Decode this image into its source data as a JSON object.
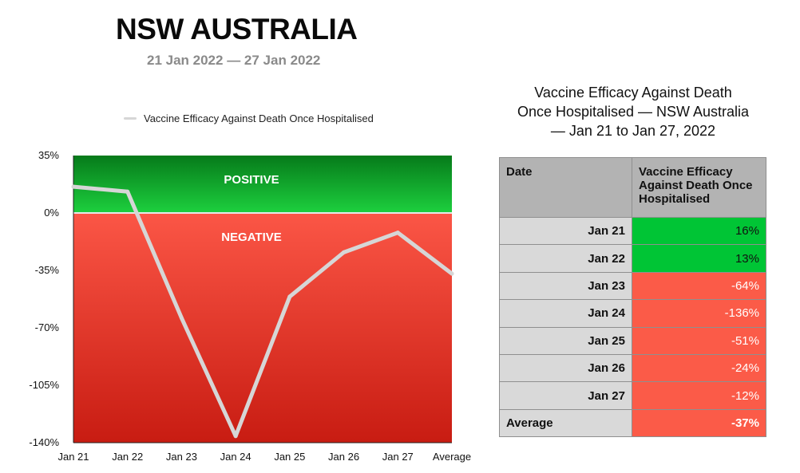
{
  "title": "NSW AUSTRALIA",
  "subtitle": "21 Jan 2022 — 27 Jan 2022",
  "legend_label": "Vaccine Efficacy Against Death Once Hospitalised",
  "table": {
    "title_lines": [
      "Vaccine Efficacy Against Death",
      "Once Hospitalised — NSW Australia",
      "— Jan 21 to Jan 27, 2022"
    ],
    "headers": [
      "Date",
      "Vaccine Efficacy Against Death Once Hospitalised"
    ],
    "rows": [
      {
        "date": "Jan 21",
        "value": "16%"
      },
      {
        "date": "Jan 22",
        "value": "13%"
      },
      {
        "date": "Jan 23",
        "value": "-64%"
      },
      {
        "date": "Jan 24",
        "value": "-136%"
      },
      {
        "date": "Jan 25",
        "value": "-51%"
      },
      {
        "date": "Jan 26",
        "value": "-24%"
      },
      {
        "date": "Jan 27",
        "value": "-12%"
      }
    ],
    "average": {
      "label": "Average",
      "value": "-37%"
    },
    "colors": {
      "positive": "#00c535",
      "negative": "#fb5b48"
    }
  },
  "chart_data": {
    "type": "line",
    "categories": [
      "Jan 21",
      "Jan 22",
      "Jan 23",
      "Jan 24",
      "Jan 25",
      "Jan 26",
      "Jan 27",
      "Average"
    ],
    "series": [
      {
        "name": "Vaccine Efficacy Against Death Once Hospitalised",
        "values": [
          16,
          13,
          -64,
          -136,
          -51,
          -24,
          -12,
          -37
        ],
        "color": "#d6d6d6"
      }
    ],
    "ylim": [
      -140,
      35
    ],
    "yticks": [
      35,
      0,
      -35,
      -70,
      -105,
      -140
    ],
    "ytick_labels": [
      "35%",
      "0%",
      "-35%",
      "-70%",
      "-105%",
      "-140%"
    ],
    "zones": [
      {
        "label": "POSITIVE",
        "from": 0,
        "to": 35,
        "color_top": "#067a1a",
        "color_bottom": "#1dd03e"
      },
      {
        "label": "NEGATIVE",
        "from": -140,
        "to": 0,
        "color_top": "#fb5646",
        "color_bottom": "#c81c12"
      }
    ],
    "legend_position": "top"
  }
}
